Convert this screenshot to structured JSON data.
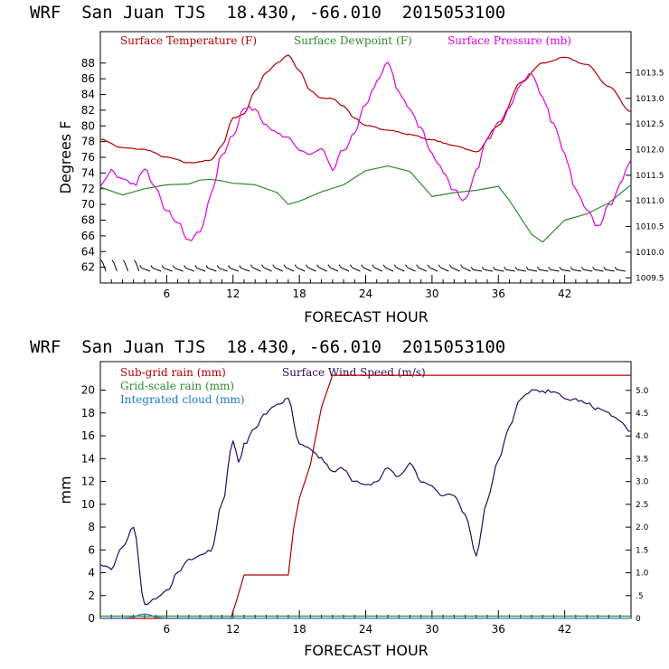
{
  "charts": [
    {
      "header": "WRF  San Juan TJS  18.430, -66.010  2015053100",
      "ylabel": "Degrees F",
      "xlabel": "FORECAST HOUR",
      "legend": [
        {
          "label": "Surface Temperature (F)",
          "color": "#b00000"
        },
        {
          "label": "Surface Dewpoint (F)",
          "color": "#2e8b2e"
        },
        {
          "label": "Surface Pressure (mb)",
          "color": "#e000e0"
        }
      ]
    },
    {
      "header": "WRF  San Juan TJS  18.430, -66.010  2015053100",
      "ylabel": "mm",
      "xlabel": "FORECAST HOUR",
      "legend": [
        {
          "label": "Sub-grid rain (mm)",
          "color": "#b00000"
        },
        {
          "label": "Surface Wind Speed (m/s)",
          "color": "#2a0a5e"
        },
        {
          "label": "Grid-scale rain (mm)",
          "color": "#2e8b2e"
        },
        {
          "label": "Integrated cloud (mm)",
          "color": "#1f78d0"
        }
      ]
    }
  ],
  "chart_data": [
    {
      "type": "line",
      "x_ticks": [
        6,
        12,
        18,
        24,
        30,
        36,
        42
      ],
      "xlim": [
        0,
        48
      ],
      "ylim": [
        60,
        92
      ],
      "y_ticks": [
        62,
        64,
        66,
        68,
        70,
        72,
        74,
        76,
        78,
        80,
        82,
        84,
        86,
        88
      ],
      "y2lim": [
        1009.4,
        1014.3
      ],
      "y2_ticks": [
        "1009.5",
        "1010.0",
        "1010.5",
        "1011.0",
        "1011.5",
        "1012.0",
        "1012.5",
        "1013.0",
        "1013.5"
      ],
      "series": [
        {
          "name": "Surface Temperature (F)",
          "axis": "left",
          "color": "#b00000",
          "x": [
            0,
            2,
            4,
            6,
            8,
            10,
            11,
            12,
            13,
            14,
            15,
            16,
            17,
            18,
            19,
            20,
            21,
            22,
            23,
            24,
            26,
            28,
            30,
            32,
            34,
            36,
            38,
            40,
            42,
            44,
            46,
            48
          ],
          "y": [
            78.3,
            77.2,
            77.0,
            76.0,
            75.3,
            75.6,
            77.5,
            81.0,
            81.5,
            84.5,
            86.8,
            88.0,
            89.0,
            87.0,
            84.5,
            83.5,
            83.5,
            82.5,
            81.0,
            80.0,
            79.5,
            78.9,
            78.2,
            77.5,
            76.7,
            80.0,
            85.5,
            88.0,
            88.7,
            87.8,
            85.0,
            81.8
          ]
        },
        {
          "name": "Surface Dewpoint (F)",
          "axis": "left",
          "color": "#2e8b2e",
          "x": [
            0,
            2,
            4,
            6,
            8,
            9,
            10,
            11,
            12,
            13,
            14,
            16,
            17,
            18,
            20,
            22,
            24,
            26,
            28,
            30,
            32,
            34,
            36,
            37,
            39,
            40,
            42,
            44,
            46,
            48
          ],
          "y": [
            72.2,
            71.2,
            72.0,
            72.5,
            72.6,
            73.1,
            73.2,
            73.0,
            72.7,
            72.6,
            72.5,
            71.5,
            70.0,
            70.4,
            71.6,
            72.5,
            74.3,
            74.9,
            74.2,
            71.0,
            71.5,
            71.8,
            72.3,
            70.5,
            66.2,
            65.2,
            68.0,
            68.8,
            70.2,
            72.5
          ]
        },
        {
          "name": "Surface Pressure (mb)",
          "axis": "right",
          "color": "#e000e0",
          "x": [
            0,
            1,
            2,
            3,
            4,
            5,
            6,
            7,
            8,
            9,
            10,
            11,
            12,
            13,
            14,
            15,
            16,
            17,
            18,
            19,
            20,
            21,
            22,
            23,
            24,
            25,
            26,
            27,
            28,
            29,
            30,
            31,
            32,
            33,
            34,
            35,
            36,
            37,
            38,
            39,
            40,
            41,
            42,
            43,
            44,
            45,
            46,
            47,
            48
          ],
          "y": [
            1011.3,
            1011.6,
            1011.4,
            1011.3,
            1011.6,
            1011.3,
            1010.8,
            1010.6,
            1010.2,
            1010.4,
            1011.1,
            1011.9,
            1012.3,
            1012.8,
            1012.8,
            1012.5,
            1012.3,
            1012.2,
            1012.0,
            1011.9,
            1012.0,
            1011.6,
            1012.0,
            1012.3,
            1012.9,
            1013.3,
            1013.7,
            1013.1,
            1012.8,
            1012.4,
            1011.9,
            1011.6,
            1011.2,
            1011.0,
            1011.6,
            1012.2,
            1012.5,
            1012.8,
            1013.3,
            1013.5,
            1013.0,
            1012.5,
            1011.9,
            1011.2,
            1010.8,
            1010.5,
            1010.9,
            1011.3,
            1011.8
          ]
        }
      ]
    },
    {
      "type": "line",
      "x_ticks": [
        6,
        12,
        18,
        24,
        30,
        36,
        42
      ],
      "xlim": [
        0,
        48
      ],
      "ylim": [
        0,
        22.5
      ],
      "y_ticks": [
        0,
        2,
        4,
        6,
        8,
        10,
        12,
        14,
        16,
        18,
        20
      ],
      "y2lim": [
        0,
        5.63
      ],
      "y2_ticks": [
        "0",
        ".5",
        "1.0",
        "1.5",
        "2.0",
        "2.5",
        "3.0",
        "3.5",
        "4.0",
        "4.5",
        "5.0"
      ],
      "series": [
        {
          "name": "Sub-grid rain (mm)",
          "axis": "left",
          "color": "#b00000",
          "x": [
            0,
            11.8,
            12.3,
            13,
            17,
            17.5,
            18,
            19,
            20,
            21,
            22,
            30,
            40,
            48
          ],
          "y": [
            0,
            0,
            1.5,
            3.8,
            3.8,
            8.0,
            10.5,
            13.5,
            18.5,
            21.3,
            21.3,
            21.3,
            21.3,
            21.3
          ]
        },
        {
          "name": "Surface Wind Speed (m/s)",
          "axis": "right",
          "color": "#2a0a5e",
          "x": [
            0,
            1,
            2,
            3,
            4,
            5,
            6,
            7,
            8,
            9,
            10,
            11,
            12,
            12.5,
            13,
            14,
            15,
            16,
            17,
            18,
            19,
            20,
            21,
            22,
            23,
            24,
            25,
            26,
            27,
            28,
            29,
            30,
            31,
            32,
            33,
            34,
            35,
            36,
            37,
            38,
            39,
            40,
            41,
            42,
            43,
            44,
            45,
            46,
            47,
            48
          ],
          "y": [
            1.2,
            1.1,
            1.6,
            2.0,
            0.3,
            0.4,
            0.6,
            1.0,
            1.3,
            1.4,
            1.5,
            2.5,
            3.9,
            3.4,
            3.8,
            4.2,
            4.5,
            4.7,
            4.8,
            3.8,
            3.7,
            3.5,
            3.2,
            3.3,
            3.0,
            2.9,
            3.0,
            3.3,
            3.1,
            3.4,
            3.0,
            2.9,
            2.7,
            2.7,
            2.3,
            1.4,
            2.6,
            3.5,
            4.2,
            4.8,
            5.0,
            4.95,
            5.0,
            4.8,
            4.8,
            4.7,
            4.6,
            4.5,
            4.3,
            4.1
          ]
        },
        {
          "name": "Grid-scale rain (mm)",
          "axis": "left",
          "color": "#2e8b2e",
          "x": [
            0,
            48
          ],
          "y": [
            0.2,
            0.2
          ]
        },
        {
          "name": "Integrated cloud (mm)",
          "axis": "left",
          "color": "#1f78d0",
          "x": [
            0,
            2,
            3,
            3.5,
            4,
            4.5,
            5,
            6,
            48
          ],
          "y": [
            0,
            0,
            0.1,
            0.3,
            0.4,
            0.3,
            0.1,
            0,
            0
          ]
        }
      ]
    }
  ]
}
